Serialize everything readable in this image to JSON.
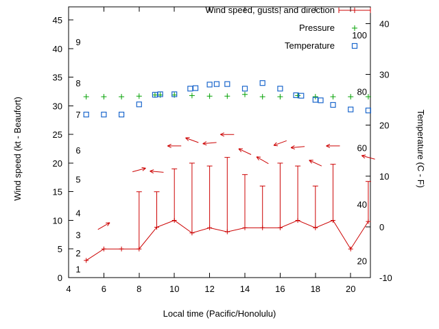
{
  "chart_data": {
    "type": "line",
    "title": "",
    "xlabel": "Local time (Pacific/Honolulu)",
    "ylabel_left": "Wind speed (kt - Beaufort)",
    "ylabel_right": "Temperature (C - F)",
    "xlim": [
      4,
      21.12
    ],
    "ylim_left": [
      0,
      47.3
    ],
    "ylim_right_c": [
      -10,
      43.3
    ],
    "x_ticks": [
      4,
      6,
      8,
      10,
      12,
      14,
      16,
      18,
      20
    ],
    "y_ticks_left": [
      0,
      5,
      10,
      15,
      20,
      25,
      30,
      35,
      40,
      45
    ],
    "y_ticks_right": [
      -10,
      0,
      10,
      20,
      30,
      40
    ],
    "grid": false,
    "legend_position": "top-right-inside",
    "fahrenheit_color": "#008080",
    "beaufort_color": "#000000",
    "beaufort_scale_labels": [
      {
        "label": "1",
        "kt": 1.5
      },
      {
        "label": "2",
        "kt": 4.3
      },
      {
        "label": "3",
        "kt": 7.5
      },
      {
        "label": "4",
        "kt": 11.3
      },
      {
        "label": "5",
        "kt": 17.2
      },
      {
        "label": "6",
        "kt": 22.3
      },
      {
        "label": "7",
        "kt": 28.5
      },
      {
        "label": "8",
        "kt": 34.0
      },
      {
        "label": "9",
        "kt": 41.2
      }
    ],
    "fahrenheit_scale_labels": [
      {
        "label": "20",
        "f": 20
      },
      {
        "label": "40",
        "f": 40
      },
      {
        "label": "60",
        "f": 60
      },
      {
        "label": "80",
        "f": 80
      },
      {
        "label": "100",
        "f": 100
      }
    ],
    "legend": [
      {
        "label": "Wind speed, gusts, and direction",
        "marker": "errorbar-line",
        "color": "#cc0000"
      },
      {
        "label": "Pressure",
        "marker": "plus",
        "color": "#00a000"
      },
      {
        "label": "Temperature",
        "marker": "open-square",
        "color": "#1a66cc"
      }
    ],
    "series": [
      {
        "name": "wind",
        "type": "line+errorbars",
        "color": "#cc0000",
        "points": [
          {
            "x": 5,
            "speed": 3.0,
            "gust": null
          },
          {
            "x": 6,
            "speed": 5.0,
            "gust": null
          },
          {
            "x": 7,
            "speed": 5.0,
            "gust": null
          },
          {
            "x": 8,
            "speed": 5.0,
            "gust": 15.0
          },
          {
            "x": 9,
            "speed": 8.8,
            "gust": 15.0
          },
          {
            "x": 10,
            "speed": 10.0,
            "gust": 19.0
          },
          {
            "x": 11,
            "speed": 7.8,
            "gust": 20.0
          },
          {
            "x": 12,
            "speed": 8.7,
            "gust": 19.5
          },
          {
            "x": 13,
            "speed": 8.0,
            "gust": 21.0
          },
          {
            "x": 14,
            "speed": 8.7,
            "gust": 18.0
          },
          {
            "x": 15,
            "speed": 8.7,
            "gust": 16.0
          },
          {
            "x": 16,
            "speed": 8.7,
            "gust": 20.0
          },
          {
            "x": 17,
            "speed": 10.0,
            "gust": 19.5
          },
          {
            "x": 18,
            "speed": 8.7,
            "gust": 16.0
          },
          {
            "x": 19,
            "speed": 10.0,
            "gust": 19.8
          },
          {
            "x": 20,
            "speed": 5.0,
            "gust": null
          },
          {
            "x": 21,
            "speed": 9.8,
            "gust": 16.8
          }
        ]
      },
      {
        "name": "wind_direction",
        "type": "vectors",
        "color": "#cc0000",
        "arrows": [
          {
            "x": 6,
            "y": 9.0,
            "angle_deg": 30
          },
          {
            "x": 8,
            "y": 18.8,
            "angle_deg": 15
          },
          {
            "x": 9,
            "y": 18.5,
            "angle_deg": 175
          },
          {
            "x": 10,
            "y": 23.0,
            "angle_deg": 180
          },
          {
            "x": 11,
            "y": 24.0,
            "angle_deg": 160
          },
          {
            "x": 12,
            "y": 23.5,
            "angle_deg": 185
          },
          {
            "x": 13,
            "y": 25.0,
            "angle_deg": 180
          },
          {
            "x": 14,
            "y": 22.0,
            "angle_deg": 155
          },
          {
            "x": 15,
            "y": 20.5,
            "angle_deg": 150
          },
          {
            "x": 16,
            "y": 23.5,
            "angle_deg": 200
          },
          {
            "x": 17,
            "y": 22.8,
            "angle_deg": 185
          },
          {
            "x": 18,
            "y": 20.0,
            "angle_deg": 155
          },
          {
            "x": 19,
            "y": 23.0,
            "angle_deg": 180
          },
          {
            "x": 21,
            "y": 21.0,
            "angle_deg": 165
          }
        ]
      },
      {
        "name": "pressure",
        "type": "points",
        "marker": "plus",
        "color": "#00a000",
        "points": [
          {
            "x": 5,
            "y": 31.6
          },
          {
            "x": 6,
            "y": 31.6
          },
          {
            "x": 7,
            "y": 31.6
          },
          {
            "x": 8,
            "y": 31.7
          },
          {
            "x": 8.9,
            "y": 31.9
          },
          {
            "x": 9.2,
            "y": 31.9
          },
          {
            "x": 10,
            "y": 31.9
          },
          {
            "x": 11,
            "y": 31.8
          },
          {
            "x": 12,
            "y": 31.7
          },
          {
            "x": 13,
            "y": 31.7
          },
          {
            "x": 14,
            "y": 32.0
          },
          {
            "x": 15,
            "y": 31.6
          },
          {
            "x": 16,
            "y": 31.6
          },
          {
            "x": 17,
            "y": 31.8
          },
          {
            "x": 18,
            "y": 31.6
          },
          {
            "x": 19,
            "y": 31.6
          },
          {
            "x": 20,
            "y": 31.6
          },
          {
            "x": 21,
            "y": 31.6
          }
        ]
      },
      {
        "name": "temperature",
        "type": "points",
        "marker": "open-square",
        "color": "#1a66cc",
        "points": [
          {
            "x": 5,
            "c": 22.1
          },
          {
            "x": 6,
            "c": 22.1
          },
          {
            "x": 7,
            "c": 22.1
          },
          {
            "x": 8,
            "c": 24.1
          },
          {
            "x": 8.9,
            "c": 26.0
          },
          {
            "x": 9.2,
            "c": 26.1
          },
          {
            "x": 10,
            "c": 26.1
          },
          {
            "x": 10.9,
            "c": 27.2
          },
          {
            "x": 11.2,
            "c": 27.3
          },
          {
            "x": 12,
            "c": 28.0
          },
          {
            "x": 12.4,
            "c": 28.1
          },
          {
            "x": 13,
            "c": 28.1
          },
          {
            "x": 14,
            "c": 27.2
          },
          {
            "x": 15,
            "c": 28.3
          },
          {
            "x": 16,
            "c": 27.2
          },
          {
            "x": 16.9,
            "c": 25.9
          },
          {
            "x": 17.2,
            "c": 25.8
          },
          {
            "x": 18,
            "c": 25.0
          },
          {
            "x": 18.3,
            "c": 24.9
          },
          {
            "x": 19,
            "c": 24.0
          },
          {
            "x": 20,
            "c": 23.1
          },
          {
            "x": 21,
            "c": 22.9
          }
        ]
      }
    ]
  }
}
